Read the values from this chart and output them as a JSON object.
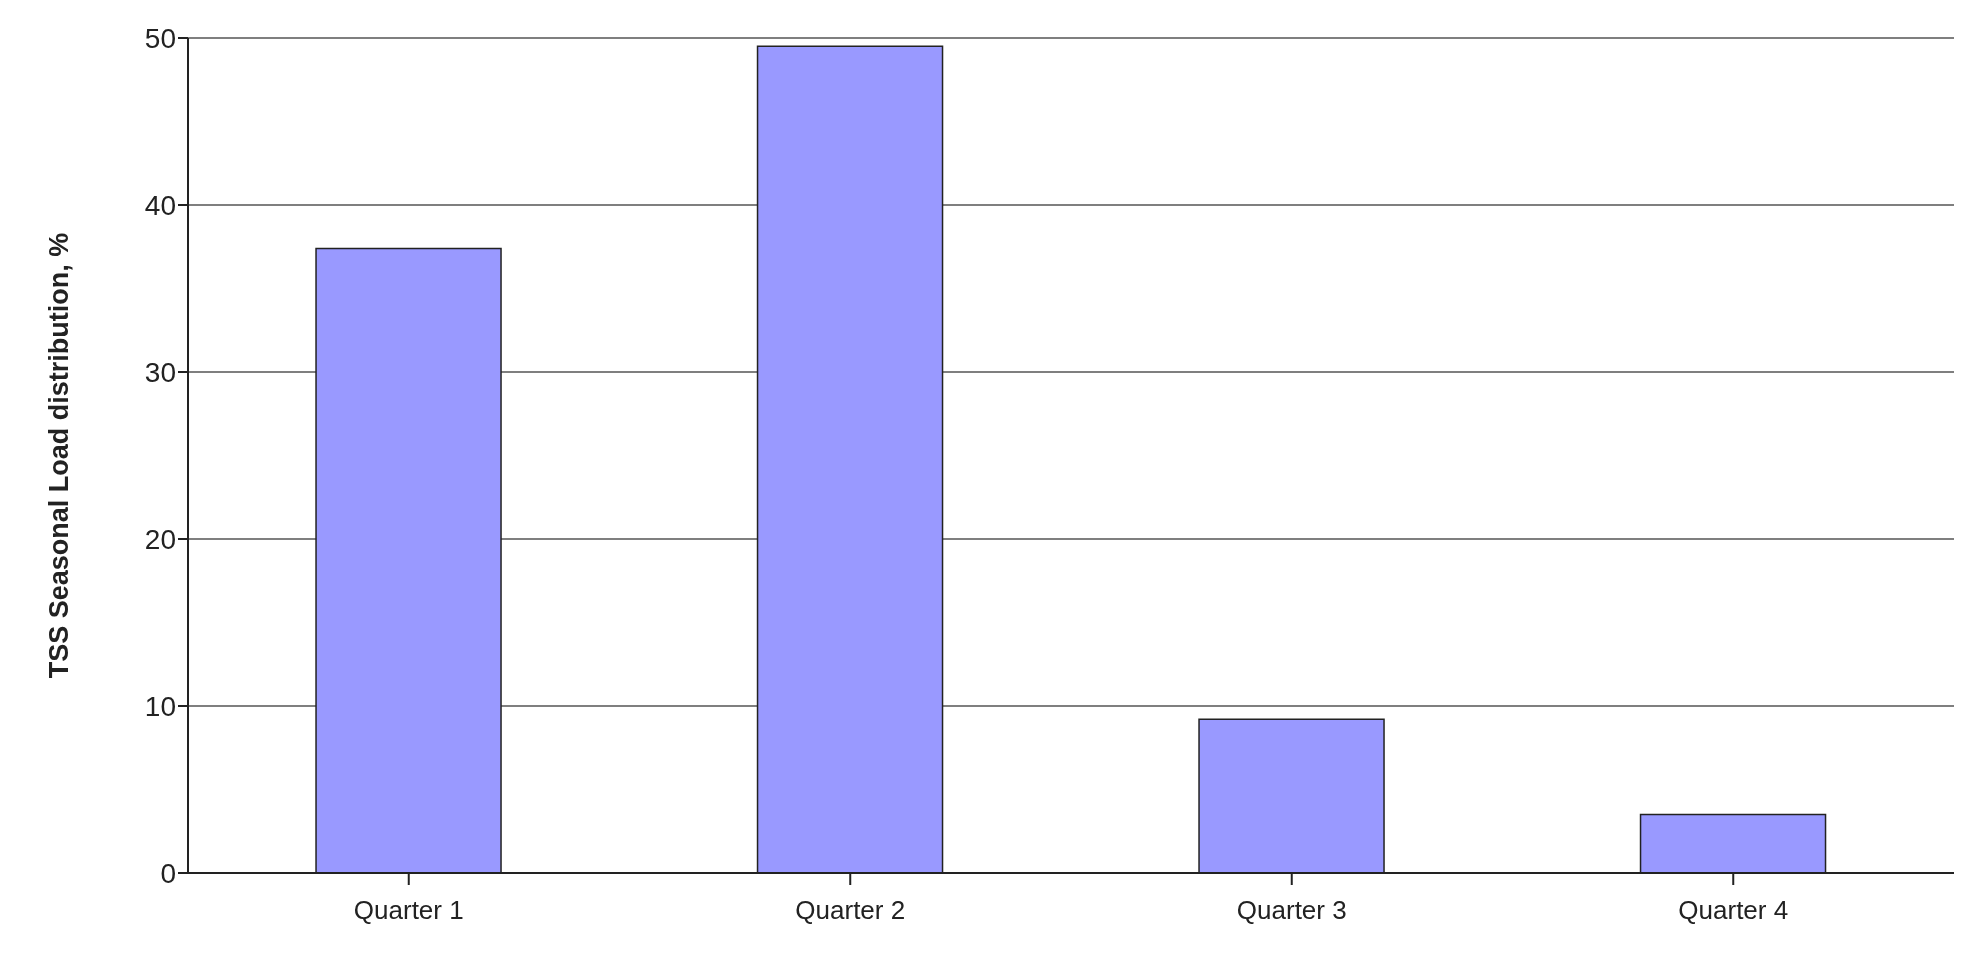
{
  "chart_data": {
    "type": "bar",
    "ylabel": "TSS Seasonal Load distribution, %",
    "categories": [
      "Quarter 1",
      "Quarter 2",
      "Quarter 3",
      "Quarter 4"
    ],
    "values": [
      37.4,
      49.5,
      9.2,
      3.5
    ],
    "color": "#9999ff",
    "ylim": [
      0,
      50
    ],
    "yticks": [
      0,
      10,
      20,
      30,
      40,
      50
    ],
    "grid": "y"
  }
}
